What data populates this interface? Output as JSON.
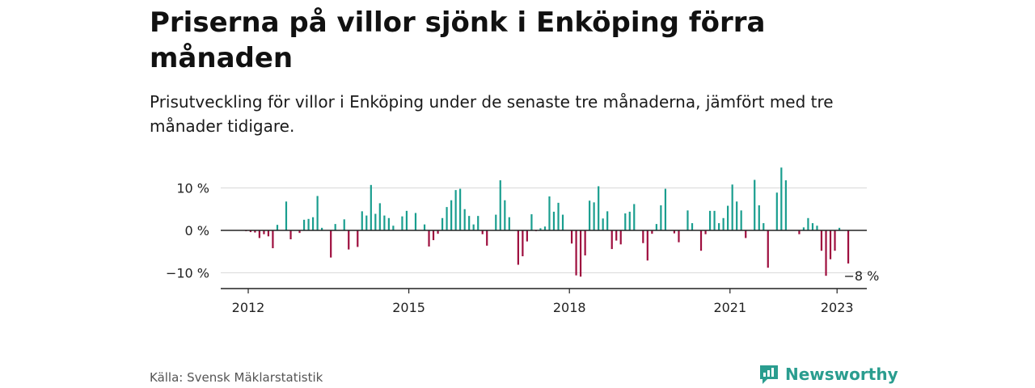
{
  "title": "Priserna på villor sjönk i Enköping förra månaden",
  "subtitle": "Prisutveckling för villor i Enköping under de senaste tre månaderna, jämfört med tre månader tidigare.",
  "source": "Källa: Svensk Mäklarstatistik",
  "brand": "Newsworthy",
  "colors": {
    "positive": "#1a9e8f",
    "negative": "#9e0e3e",
    "axis": "#222222",
    "grid": "#d9d9d9",
    "brand": "#2a9d8f"
  },
  "chart_data": {
    "type": "bar",
    "yticks": [
      {
        "value": 10,
        "label": "10 %"
      },
      {
        "value": 0,
        "label": "0 %"
      },
      {
        "value": -10,
        "label": "−10 %"
      }
    ],
    "xticks": [
      {
        "value": 2012,
        "label": "2012"
      },
      {
        "value": 2015,
        "label": "2015"
      },
      {
        "value": 2018,
        "label": "2018"
      },
      {
        "value": 2021,
        "label": "2021"
      },
      {
        "value": 2023,
        "label": "2023"
      }
    ],
    "ylim": [
      -13.5,
      16
    ],
    "xlim": [
      2011.5,
      2023.58
    ],
    "grid": true,
    "annotation": {
      "text": "−8 %",
      "x": 2023.17,
      "y": -8
    },
    "series": [
      {
        "x": [
          2011.958,
          2012.042,
          2012.125,
          2012.208,
          2012.292,
          2012.375,
          2012.458,
          2012.542,
          2012.625,
          2012.708,
          2012.792,
          2012.875,
          2012.958,
          2013.042,
          2013.125,
          2013.208,
          2013.292,
          2013.375,
          2013.458,
          2013.542,
          2013.625,
          2013.708,
          2013.792,
          2013.875,
          2013.958,
          2014.042,
          2014.125,
          2014.208,
          2014.292,
          2014.375,
          2014.458,
          2014.542,
          2014.625,
          2014.708,
          2014.792,
          2014.875,
          2014.958,
          2015.042,
          2015.125,
          2015.208,
          2015.292,
          2015.375,
          2015.458,
          2015.542,
          2015.625,
          2015.708,
          2015.792,
          2015.875,
          2015.958,
          2016.042,
          2016.125,
          2016.208,
          2016.292,
          2016.375,
          2016.458,
          2016.542,
          2016.625,
          2016.708,
          2016.792,
          2016.875,
          2016.958,
          2017.042,
          2017.125,
          2017.208,
          2017.292,
          2017.375,
          2017.458,
          2017.542,
          2017.625,
          2017.708,
          2017.792,
          2017.875,
          2017.958,
          2018.042,
          2018.125,
          2018.208,
          2018.292,
          2018.375,
          2018.458,
          2018.542,
          2018.625,
          2018.708,
          2018.792,
          2018.875,
          2018.958,
          2019.042,
          2019.125,
          2019.208,
          2019.292,
          2019.375,
          2019.458,
          2019.542,
          2019.625,
          2019.708,
          2019.792,
          2019.875,
          2019.958,
          2020.042,
          2020.125,
          2020.208,
          2020.292,
          2020.375,
          2020.458,
          2020.542,
          2020.625,
          2020.708,
          2020.792,
          2020.875,
          2020.958,
          2021.042,
          2021.125,
          2021.208,
          2021.292,
          2021.375,
          2021.458,
          2021.542,
          2021.625,
          2021.708,
          2021.792,
          2021.875,
          2021.958,
          2022.042,
          2022.125,
          2022.208,
          2022.292,
          2022.375,
          2022.458,
          2022.542,
          2022.625,
          2022.708,
          2022.792,
          2022.875,
          2022.958,
          2023.042,
          2023.125,
          2023.208
        ],
        "values": [
          -0.2,
          -0.4,
          -0.5,
          -1.8,
          -0.9,
          -1.4,
          -4.2,
          1.3,
          0,
          6.8,
          -2.1,
          0,
          -0.6,
          2.5,
          2.7,
          3.1,
          8.1,
          0.6,
          0,
          -6.4,
          1.5,
          0,
          2.6,
          -4.5,
          0,
          -3.9,
          4.5,
          3.5,
          10.7,
          3.9,
          6.4,
          3.5,
          2.9,
          1.1,
          0,
          3.3,
          4.6,
          0,
          4.1,
          0,
          1.4,
          -3.8,
          -2.3,
          -0.8,
          2.9,
          5.5,
          7.1,
          9.5,
          9.8,
          5,
          3.4,
          1.4,
          3.4,
          -0.9,
          -3.6,
          0,
          3.7,
          11.8,
          7.1,
          3.1,
          0,
          -8.1,
          -6.1,
          -2.6,
          3.8,
          -0.2,
          0.5,
          0.9,
          8,
          4.4,
          6.5,
          3.7,
          0,
          -3.1,
          -10.6,
          -10.9,
          -5.9,
          7,
          6.6,
          10.4,
          2.8,
          4.5,
          -4.4,
          -2.4,
          -3.3,
          4,
          4.4,
          6.2,
          0,
          -3,
          -7.1,
          -0.8,
          1.5,
          5.9,
          9.8,
          0,
          -0.7,
          -2.8,
          0,
          4.7,
          1.7,
          0,
          -4.8,
          -0.9,
          4.6,
          4.6,
          1.7,
          2.9,
          5.8,
          10.8,
          6.8,
          4.7,
          -1.8,
          0,
          11.9,
          5.9,
          1.7,
          -8.8,
          0,
          8.9,
          14.8,
          11.8,
          0,
          0,
          -0.9,
          0.7,
          2.9,
          1.7,
          1.1,
          -4.8,
          -10.7,
          -6.8,
          -4.8,
          0.6,
          0,
          -7.8
        ]
      }
    ]
  }
}
